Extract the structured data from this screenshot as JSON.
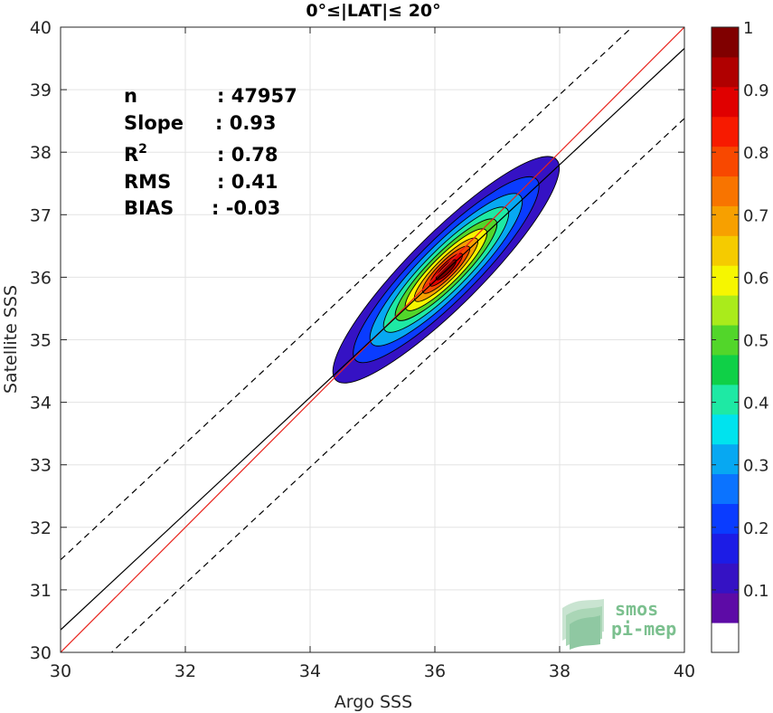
{
  "chart_data": {
    "type": "contour-density-scatter",
    "title": "0°≤|LAT|≤ 20°",
    "xlabel": "Argo SSS",
    "ylabel": "Satellite SSS",
    "xlim": [
      30,
      40
    ],
    "ylim": [
      30,
      40
    ],
    "xticks": [
      "30",
      "32",
      "34",
      "36",
      "38",
      "40"
    ],
    "yticks": [
      "30",
      "31",
      "32",
      "33",
      "34",
      "35",
      "36",
      "37",
      "38",
      "39",
      "40"
    ],
    "grid": true,
    "stats": [
      {
        "label": "n",
        "value": ": 47957"
      },
      {
        "label": "Slope",
        "value": ": 0.93"
      },
      {
        "label": "R",
        "sup": "2",
        "value": ": 0.78"
      },
      {
        "label": "RMS",
        "value": ": 0.41"
      },
      {
        "label": "BIAS",
        "value": ": -0.03"
      }
    ],
    "lines": [
      {
        "kind": "one-to-one",
        "color": "#e8231c",
        "style": "solid",
        "x": [
          30,
          40
        ],
        "y": [
          30,
          40
        ]
      },
      {
        "kind": "regression",
        "color": "#000000",
        "style": "solid",
        "x": [
          30,
          40
        ],
        "y": [
          30.36,
          39.66
        ]
      },
      {
        "kind": "regression+offset",
        "color": "#000000",
        "style": "dashed",
        "x": [
          30,
          40
        ],
        "y": [
          31.48,
          40.78
        ]
      },
      {
        "kind": "regression-offset",
        "color": "#000000",
        "style": "dashed",
        "x": [
          30,
          40
        ],
        "y": [
          29.24,
          38.54
        ]
      }
    ],
    "density": {
      "center": [
        36.18,
        36.12
      ],
      "major_axis_angle_deg": 45,
      "levels": [
        0.05,
        0.15,
        0.25,
        0.35,
        0.45,
        0.55,
        0.65,
        0.75,
        0.85,
        0.95
      ],
      "radii_major": [
        2.5,
        2.05,
        1.68,
        1.38,
        1.12,
        0.9,
        0.7,
        0.52,
        0.36,
        0.22
      ],
      "radii_minor": [
        0.58,
        0.48,
        0.4,
        0.33,
        0.27,
        0.22,
        0.17,
        0.13,
        0.09,
        0.06
      ]
    },
    "colorbar": {
      "ticks": [
        "0.1",
        "0.2",
        "0.3",
        "0.4",
        "0.5",
        "0.6",
        "0.7",
        "0.8",
        "0.9",
        "1"
      ],
      "tick_values": [
        0.1,
        0.2,
        0.3,
        0.4,
        0.5,
        0.6,
        0.7,
        0.8,
        0.9,
        1.0
      ],
      "range": [
        0.0,
        1.0
      ],
      "colors": [
        "#ffffff",
        "#5d0ba6",
        "#3512c4",
        "#1c1ce6",
        "#0a3cff",
        "#0b73ff",
        "#07a8f2",
        "#00e3ee",
        "#1ee9a4",
        "#0fd047",
        "#52d62a",
        "#aaeb1b",
        "#f6f600",
        "#f5cb00",
        "#f7a000",
        "#f87400",
        "#f84800",
        "#f71a00",
        "#e00000",
        "#b00000",
        "#800000"
      ]
    }
  },
  "logo": {
    "line1": "smos",
    "line2": "pi-mep"
  }
}
